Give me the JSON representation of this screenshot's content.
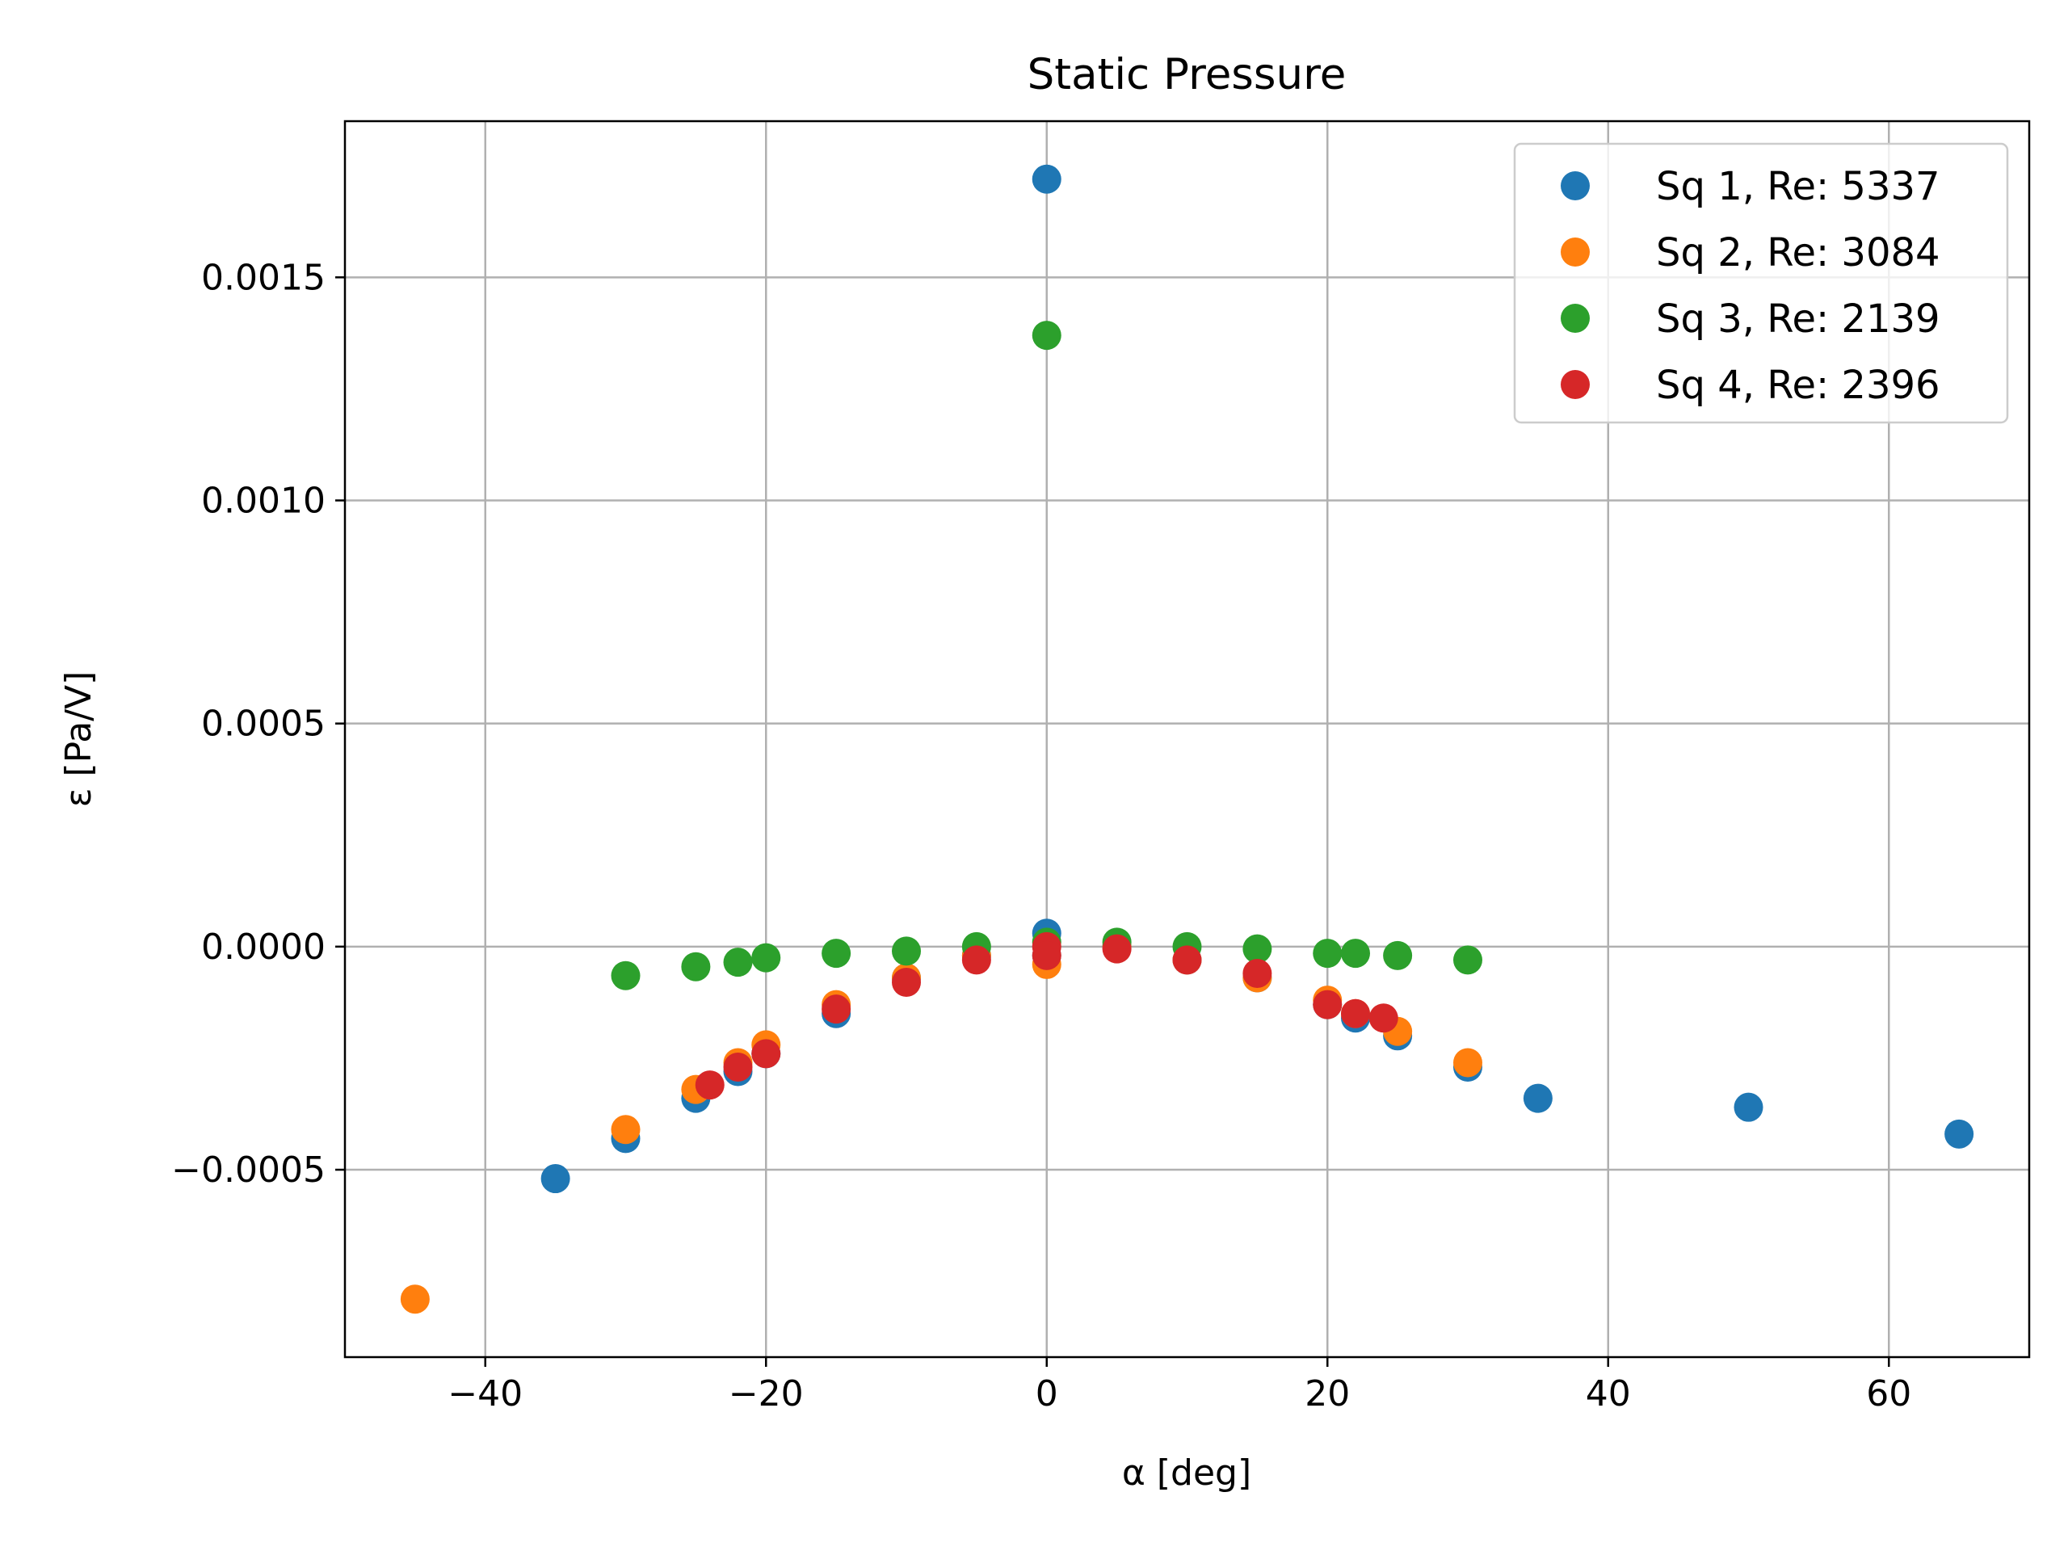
{
  "chart_data": {
    "type": "scatter",
    "title": "Static Pressure",
    "xlabel": "α [deg]",
    "ylabel": "ε [Pa/V]",
    "xlim": [
      -50,
      70
    ],
    "ylim": [
      -0.00092,
      0.00185
    ],
    "x_ticks": [
      -40,
      -20,
      0,
      20,
      40,
      60
    ],
    "x_tick_labels": [
      "−40",
      "−20",
      "0",
      "20",
      "40",
      "60"
    ],
    "y_ticks": [
      -0.0005,
      0.0,
      0.0005,
      0.001,
      0.0015
    ],
    "y_tick_labels": [
      "−0.0005",
      "0.0000",
      "0.0005",
      "0.0010",
      "0.0015"
    ],
    "grid": true,
    "legend_position": "top-right",
    "series": [
      {
        "name": "Sq 1, Re: 5337",
        "color": "#1f77b4",
        "x": [
          -35,
          -30,
          -25,
          -22,
          -20,
          -15,
          -10,
          -5,
          0,
          0,
          0,
          5,
          10,
          15,
          20,
          22,
          25,
          30,
          35,
          50,
          65
        ],
        "y": [
          -0.00052,
          -0.00043,
          -0.00034,
          -0.00028,
          -0.00024,
          -0.00015,
          -7e-05,
          -2e-05,
          0.00172,
          3e-05,
          -2e-05,
          0.0,
          -3e-05,
          -7e-05,
          -0.00013,
          -0.00016,
          -0.0002,
          -0.00027,
          -0.00034,
          -0.00036,
          -0.00042
        ]
      },
      {
        "name": "Sq 2, Re: 3084",
        "color": "#ff7f0e",
        "x": [
          -45,
          -30,
          -25,
          -22,
          -20,
          -15,
          -10,
          -5,
          0,
          5,
          10,
          15,
          20,
          22,
          25,
          30
        ],
        "y": [
          -0.00079,
          -0.00041,
          -0.00032,
          -0.00026,
          -0.00022,
          -0.00013,
          -7e-05,
          -2e-05,
          -4e-05,
          0.0,
          -3e-05,
          -7e-05,
          -0.00012,
          -0.00015,
          -0.00019,
          -0.00026
        ]
      },
      {
        "name": "Sq 3, Re: 2139",
        "color": "#2ca02c",
        "x": [
          -30,
          -25,
          -22,
          -20,
          -15,
          -10,
          -5,
          0,
          0,
          5,
          10,
          15,
          20,
          22,
          25,
          30
        ],
        "y": [
          -6.5e-05,
          -4.5e-05,
          -3.5e-05,
          -2.5e-05,
          -1.5e-05,
          -1e-05,
          0.0,
          0.00137,
          1e-05,
          1e-05,
          0.0,
          -5e-06,
          -1.5e-05,
          -1.5e-05,
          -2e-05,
          -3e-05
        ]
      },
      {
        "name": "Sq 4, Re: 2396",
        "color": "#d62728",
        "x": [
          -24,
          -22,
          -20,
          -15,
          -10,
          -5,
          0,
          0,
          5,
          10,
          15,
          20,
          22,
          24
        ],
        "y": [
          -0.00031,
          -0.00027,
          -0.00024,
          -0.00014,
          -8e-05,
          -3e-05,
          0.0,
          -2e-05,
          -5e-06,
          -3e-05,
          -6e-05,
          -0.00013,
          -0.00015,
          -0.00016
        ]
      }
    ]
  }
}
